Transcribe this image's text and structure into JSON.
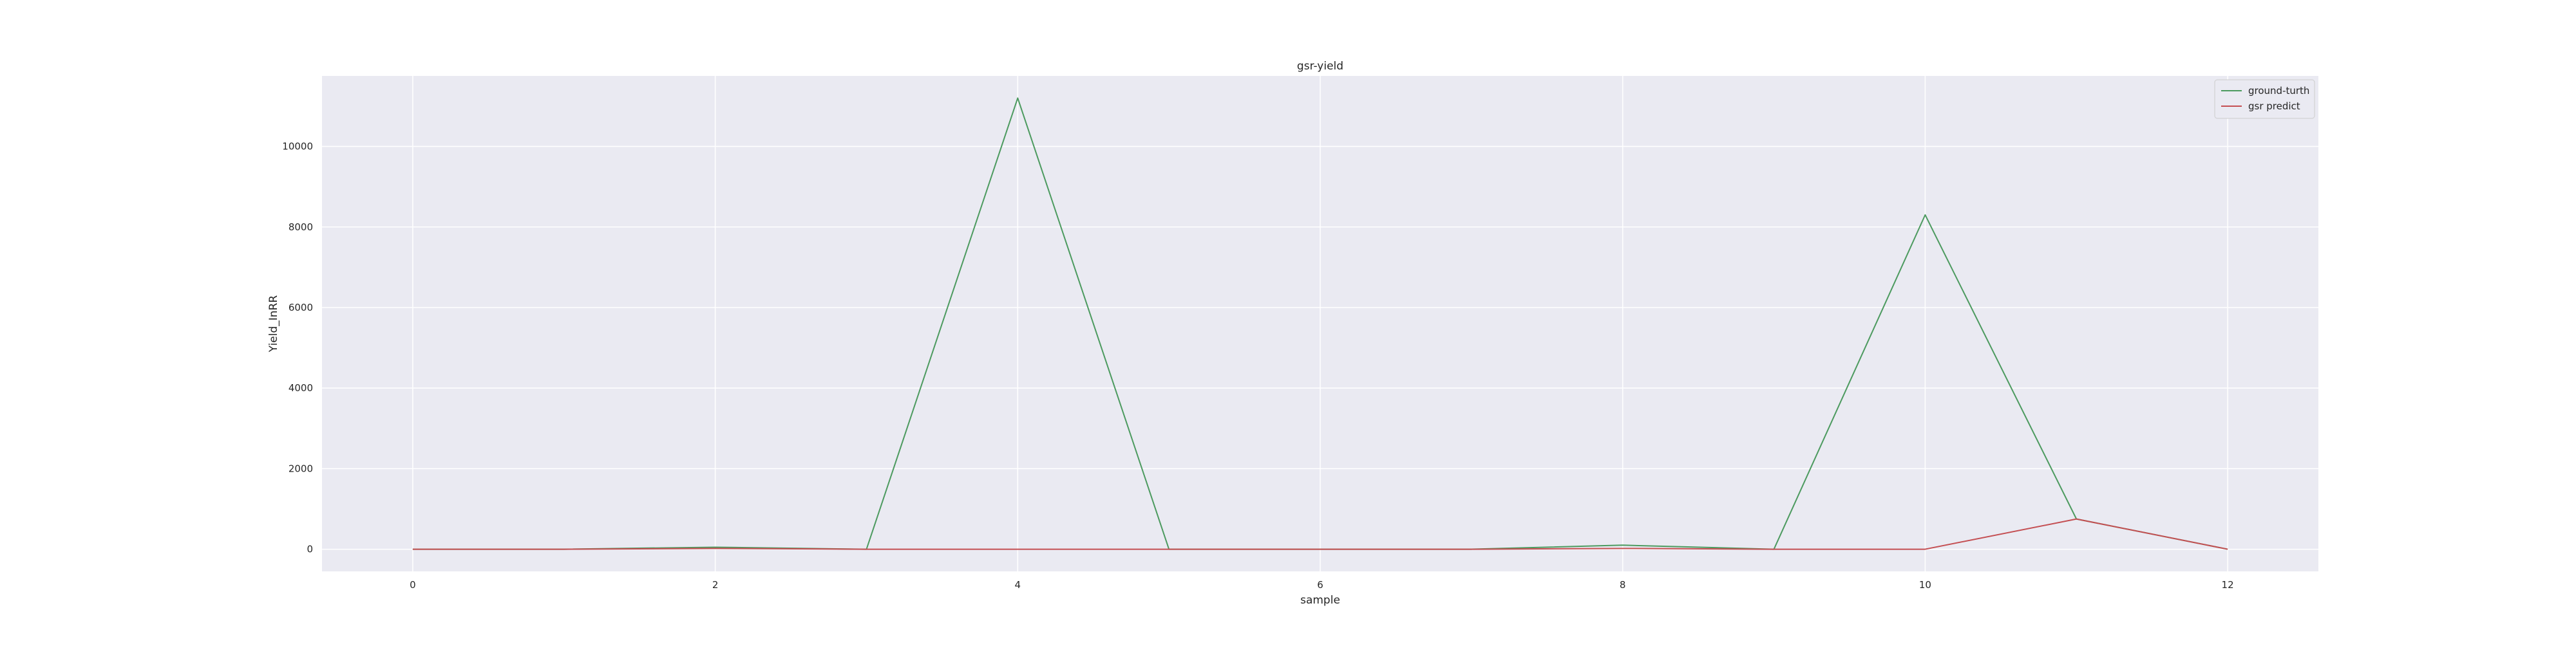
{
  "chart_data": {
    "type": "line",
    "title": "gsr-yield",
    "xlabel": "sample",
    "ylabel": "Yield_InRR",
    "x": [
      0,
      1,
      2,
      3,
      4,
      5,
      6,
      7,
      8,
      9,
      10,
      11,
      12
    ],
    "series": [
      {
        "name": "ground-turth",
        "color": "#4c9a5f",
        "values": [
          0,
          0,
          50,
          0,
          11200,
          0,
          0,
          0,
          100,
          0,
          8300,
          750,
          0
        ]
      },
      {
        "name": "gsr predict",
        "color": "#c44e52",
        "values": [
          0,
          0,
          20,
          0,
          0,
          0,
          0,
          0,
          20,
          0,
          0,
          750,
          0
        ]
      }
    ],
    "xlim": [
      -0.6,
      12.6
    ],
    "ylim": [
      -550,
      11750
    ],
    "xticks": [
      0,
      2,
      4,
      6,
      8,
      10,
      12
    ],
    "yticks": [
      0,
      2000,
      4000,
      6000,
      8000,
      10000
    ],
    "grid": true,
    "legend_position": "top-right",
    "background_color": "#eaeaf2"
  }
}
